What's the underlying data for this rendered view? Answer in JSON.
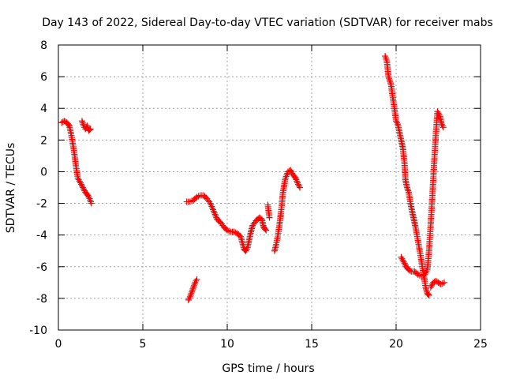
{
  "chart_data": {
    "type": "scatter",
    "title": "Day 143 of 2022, Sidereal Day-to-day VTEC variation (SDTVAR) for receiver mabs",
    "xlabel": "GPS time / hours",
    "ylabel": "SDTVAR / TECUs",
    "xlim": [
      0,
      25
    ],
    "ylim": [
      -10,
      8
    ],
    "xticks": [
      0,
      5,
      10,
      15,
      20,
      25
    ],
    "yticks": [
      -10,
      -8,
      -6,
      -4,
      -2,
      0,
      2,
      4,
      6,
      8
    ],
    "grid": true,
    "marker": "+",
    "colors": {
      "series": "#ff0000",
      "grid": "#a0a0a0",
      "axis": "#000000"
    },
    "series": [
      {
        "name": "SDTVAR",
        "segments": [
          [
            [
              0.2,
              3.1
            ],
            [
              0.35,
              3.2
            ],
            [
              0.5,
              3.1
            ],
            [
              0.65,
              2.9
            ],
            [
              0.75,
              2.4
            ],
            [
              0.85,
              1.8
            ],
            [
              0.95,
              1.1
            ],
            [
              1.05,
              0.3
            ],
            [
              1.15,
              -0.4
            ],
            [
              1.3,
              -0.7
            ],
            [
              1.45,
              -1.0
            ],
            [
              1.6,
              -1.3
            ],
            [
              1.75,
              -1.5
            ],
            [
              1.85,
              -1.7
            ],
            [
              1.95,
              -2.0
            ]
          ],
          [
            [
              1.4,
              3.2
            ],
            [
              1.5,
              2.9
            ],
            [
              1.6,
              2.7
            ],
            [
              1.7,
              2.9
            ],
            [
              1.8,
              2.6
            ],
            [
              1.9,
              2.7
            ]
          ],
          [
            [
              7.7,
              -8.1
            ],
            [
              7.8,
              -7.9
            ],
            [
              7.9,
              -7.6
            ],
            [
              8.0,
              -7.3
            ],
            [
              8.1,
              -7.0
            ],
            [
              8.2,
              -6.8
            ]
          ],
          [
            [
              7.6,
              -1.9
            ],
            [
              7.8,
              -1.9
            ],
            [
              8.0,
              -1.8
            ],
            [
              8.2,
              -1.6
            ],
            [
              8.4,
              -1.5
            ],
            [
              8.6,
              -1.5
            ],
            [
              8.8,
              -1.7
            ],
            [
              9.0,
              -2.0
            ],
            [
              9.2,
              -2.5
            ],
            [
              9.4,
              -3.0
            ],
            [
              9.6,
              -3.2
            ],
            [
              9.8,
              -3.5
            ],
            [
              10.0,
              -3.7
            ],
            [
              10.2,
              -3.8
            ],
            [
              10.4,
              -3.8
            ],
            [
              10.6,
              -3.9
            ],
            [
              10.8,
              -4.1
            ],
            [
              10.9,
              -4.5
            ],
            [
              11.0,
              -4.9
            ],
            [
              11.1,
              -5.0
            ],
            [
              11.2,
              -4.8
            ],
            [
              11.3,
              -4.3
            ],
            [
              11.4,
              -3.8
            ],
            [
              11.5,
              -3.4
            ],
            [
              11.7,
              -3.1
            ],
            [
              11.9,
              -2.9
            ],
            [
              12.05,
              -3.0
            ],
            [
              12.15,
              -3.5
            ],
            [
              12.3,
              -3.7
            ]
          ],
          [
            [
              12.4,
              -2.1
            ],
            [
              12.5,
              -2.9
            ]
          ],
          [
            [
              12.8,
              -5.0
            ],
            [
              12.9,
              -4.6
            ],
            [
              13.0,
              -4.0
            ],
            [
              13.1,
              -3.3
            ],
            [
              13.2,
              -2.4
            ],
            [
              13.3,
              -1.3
            ],
            [
              13.45,
              -0.4
            ],
            [
              13.6,
              0.0
            ],
            [
              13.75,
              0.1
            ],
            [
              13.9,
              -0.2
            ],
            [
              14.05,
              -0.4
            ],
            [
              14.2,
              -0.8
            ],
            [
              14.3,
              -1.0
            ]
          ],
          [
            [
              19.35,
              7.3
            ],
            [
              19.45,
              7.0
            ],
            [
              19.55,
              6.0
            ],
            [
              19.7,
              5.5
            ],
            [
              19.8,
              4.7
            ],
            [
              19.9,
              4.0
            ],
            [
              20.0,
              3.2
            ],
            [
              20.1,
              3.0
            ],
            [
              20.2,
              2.5
            ],
            [
              20.3,
              2.0
            ],
            [
              20.4,
              1.5
            ],
            [
              20.5,
              0.5
            ],
            [
              20.55,
              -0.5
            ],
            [
              20.65,
              -1.0
            ],
            [
              20.75,
              -1.3
            ],
            [
              20.85,
              -2.0
            ],
            [
              20.95,
              -2.5
            ],
            [
              21.05,
              -3.0
            ],
            [
              21.15,
              -3.5
            ],
            [
              21.25,
              -4.1
            ],
            [
              21.35,
              -4.7
            ],
            [
              21.45,
              -5.3
            ],
            [
              21.55,
              -6.0
            ],
            [
              21.65,
              -6.6
            ],
            [
              21.75,
              -7.3
            ],
            [
              21.85,
              -7.7
            ],
            [
              21.95,
              -7.8
            ]
          ],
          [
            [
              20.3,
              -5.4
            ],
            [
              20.45,
              -5.7
            ],
            [
              20.6,
              -6.0
            ],
            [
              20.75,
              -6.2
            ],
            [
              20.9,
              -6.3
            ],
            [
              21.1,
              -6.3
            ],
            [
              21.3,
              -6.5
            ],
            [
              21.5,
              -6.6
            ],
            [
              21.7,
              -6.5
            ],
            [
              21.85,
              -6.2
            ],
            [
              21.95,
              -5.0
            ],
            [
              22.05,
              -3.3
            ],
            [
              22.15,
              -1.5
            ],
            [
              22.25,
              0.5
            ],
            [
              22.35,
              2.3
            ],
            [
              22.45,
              3.8
            ],
            [
              22.6,
              3.5
            ],
            [
              22.7,
              3.0
            ],
            [
              22.8,
              2.8
            ]
          ],
          [
            [
              22.05,
              -7.3
            ],
            [
              22.2,
              -7.0
            ],
            [
              22.35,
              -6.9
            ],
            [
              22.5,
              -7.0
            ],
            [
              22.65,
              -7.1
            ],
            [
              22.85,
              -7.0
            ]
          ]
        ]
      }
    ]
  }
}
